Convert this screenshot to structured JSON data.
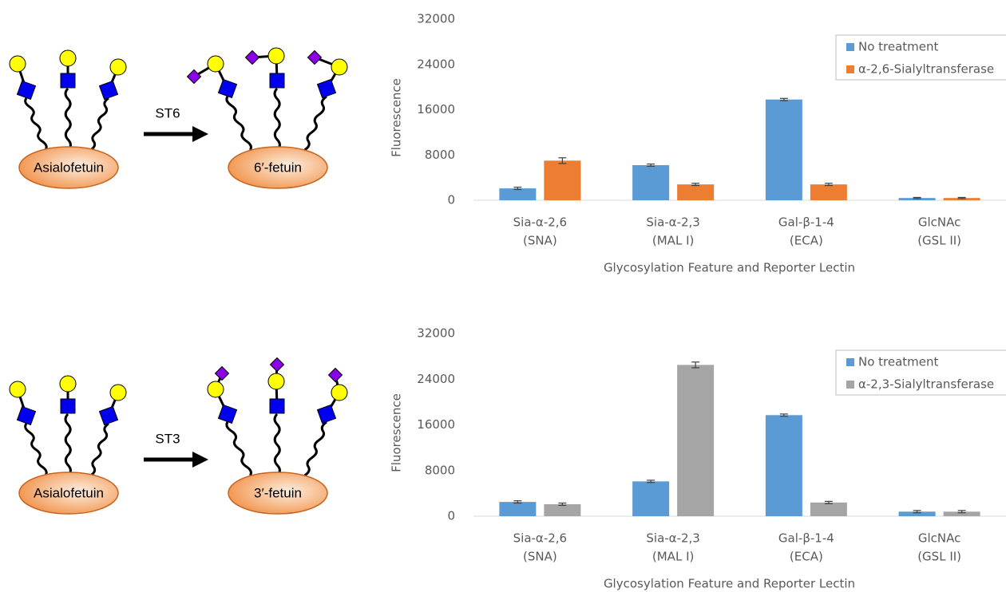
{
  "diagrams": [
    {
      "substrate": "Asialofetuin",
      "enzyme": "ST6",
      "product": "6′-fetuin"
    },
    {
      "substrate": "Asialofetuin",
      "enzyme": "ST3",
      "product": "3′-fetuin"
    }
  ],
  "chart_data": [
    {
      "type": "bar",
      "xlabel": "Glycosylation Feature and Reporter Lectin",
      "ylabel": "Fluorescence",
      "categories": [
        [
          "Sia-α-2,6",
          "(SNA)"
        ],
        [
          "Sia-α-2,3",
          "(MAL I)"
        ],
        [
          "Gal-β-1-4",
          "(ECA)"
        ],
        [
          "GlcNAc",
          "(GSL II)"
        ]
      ],
      "series": [
        {
          "name": "No treatment",
          "color": "#5b9bd5",
          "values": [
            2100,
            6200,
            17800,
            400
          ],
          "errors": [
            200,
            200,
            200,
            100
          ]
        },
        {
          "name": "α-2,6-Sialyltransferase",
          "color": "#ed7d31",
          "values": [
            7000,
            2800,
            2800,
            400
          ],
          "errors": [
            500,
            200,
            200,
            100
          ]
        }
      ],
      "ylim": [
        0,
        32000
      ],
      "yticks": [
        0,
        8000,
        16000,
        24000,
        32000
      ],
      "grid": false,
      "legend": "top-right"
    },
    {
      "type": "bar",
      "xlabel": "Glycosylation Feature and Reporter Lectin",
      "ylabel": "Fluorescence",
      "categories": [
        [
          "Sia-α-2,6",
          "(SNA)"
        ],
        [
          "Sia-α-2,3",
          "(MAL I)"
        ],
        [
          "Gal-β-1-4",
          "(ECA)"
        ],
        [
          "GlcNAc",
          "(GSL II)"
        ]
      ],
      "series": [
        {
          "name": "No treatment",
          "color": "#5b9bd5",
          "values": [
            2500,
            6100,
            17700,
            800
          ],
          "errors": [
            200,
            200,
            200,
            200
          ]
        },
        {
          "name": "α-2,3-Sialyltransferase",
          "color": "#a5a5a5",
          "values": [
            2100,
            26500,
            2400,
            800
          ],
          "errors": [
            200,
            500,
            200,
            200
          ]
        }
      ],
      "ylim": [
        0,
        32000
      ],
      "yticks": [
        0,
        8000,
        16000,
        24000,
        32000
      ],
      "grid": false,
      "legend": "top-right"
    }
  ]
}
